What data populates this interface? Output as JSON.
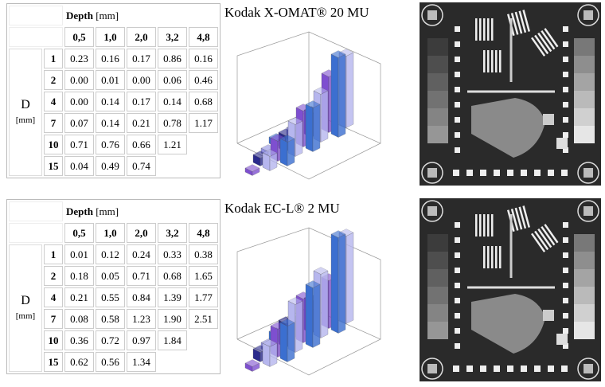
{
  "panels": [
    {
      "title": "Kodak X-OMAT® 20 MU",
      "table": {
        "header": "Depth",
        "header_unit": "[mm]",
        "row_label": "D",
        "row_unit": "[mm]",
        "columns": [
          "0,5",
          "1,0",
          "2,0",
          "3,2",
          "4,8"
        ],
        "rows": [
          {
            "label": "1",
            "cells": [
              "0.23",
              "0.16",
              "0.17",
              "0.86",
              "0.16"
            ]
          },
          {
            "label": "2",
            "cells": [
              "0.00",
              "0.01",
              "0.00",
              "0.06",
              "0.46"
            ]
          },
          {
            "label": "4",
            "cells": [
              "0.00",
              "0.14",
              "0.17",
              "0.14",
              "0.68"
            ]
          },
          {
            "label": "7",
            "cells": [
              "0.07",
              "0.14",
              "0.21",
              "0.78",
              "1.17"
            ]
          },
          {
            "label": "10",
            "cells": [
              "0.71",
              "0.76",
              "0.66",
              "1.21"
            ]
          },
          {
            "label": "15",
            "cells": [
              "0.04",
              "0.49",
              "0.74"
            ]
          }
        ]
      }
    },
    {
      "title": "Kodak EC-L® 2 MU",
      "table": {
        "header": "Depth",
        "header_unit": "[mm]",
        "row_label": "D",
        "row_unit": "[mm]",
        "columns": [
          "0,5",
          "1,0",
          "2,0",
          "3,2",
          "4,8"
        ],
        "rows": [
          {
            "label": "1",
            "cells": [
              "0.01",
              "0.12",
              "0.24",
              "0.33",
              "0.38"
            ]
          },
          {
            "label": "2",
            "cells": [
              "0.18",
              "0.05",
              "0.71",
              "0.68",
              "1.65"
            ]
          },
          {
            "label": "4",
            "cells": [
              "0.21",
              "0.55",
              "0.84",
              "1.39",
              "1.77"
            ]
          },
          {
            "label": "7",
            "cells": [
              "0.08",
              "0.58",
              "1.23",
              "1.90",
              "2.51"
            ]
          },
          {
            "label": "10",
            "cells": [
              "0.36",
              "0.72",
              "0.97",
              "1.84"
            ]
          },
          {
            "label": "15",
            "cells": [
              "0.62",
              "0.56",
              "1.34"
            ]
          }
        ]
      }
    }
  ]
}
